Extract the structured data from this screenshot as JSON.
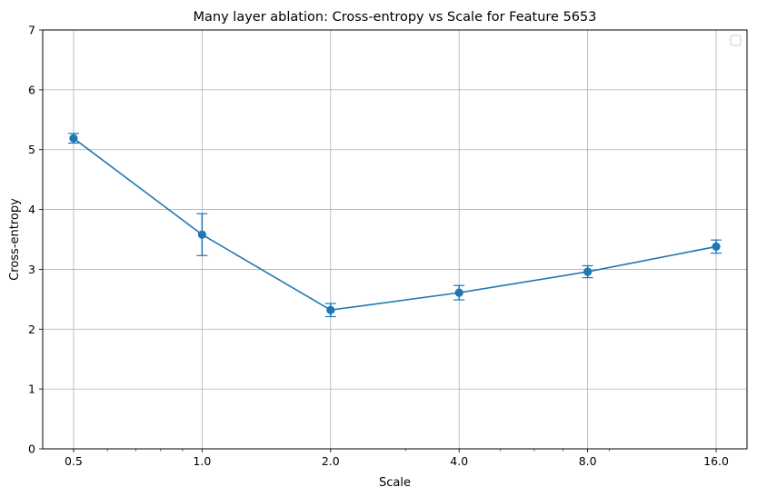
{
  "chart_data": {
    "type": "line",
    "title": "Many layer ablation: Cross-entropy vs Scale for Feature 5653",
    "xlabel": "Scale",
    "ylabel": "Cross-entropy",
    "x_scale": "log2",
    "x": [
      0.5,
      1.0,
      2.0,
      4.0,
      8.0,
      16.0
    ],
    "x_tick_labels": [
      "0.5",
      "1.0",
      "2.0",
      "4.0",
      "8.0",
      "16.0"
    ],
    "ylim": [
      0,
      7
    ],
    "y_ticks": [
      0,
      1,
      2,
      3,
      4,
      5,
      6,
      7
    ],
    "y_tick_labels": [
      "0",
      "1",
      "2",
      "3",
      "4",
      "5",
      "6",
      "7"
    ],
    "grid": true,
    "legend": "top-right (empty)",
    "series": [
      {
        "values": [
          5.19,
          3.58,
          2.32,
          2.61,
          2.96,
          3.38
        ],
        "error": [
          0.08,
          0.35,
          0.11,
          0.12,
          0.1,
          0.11
        ],
        "color": "#1f77b4",
        "marker": "circle"
      }
    ]
  }
}
